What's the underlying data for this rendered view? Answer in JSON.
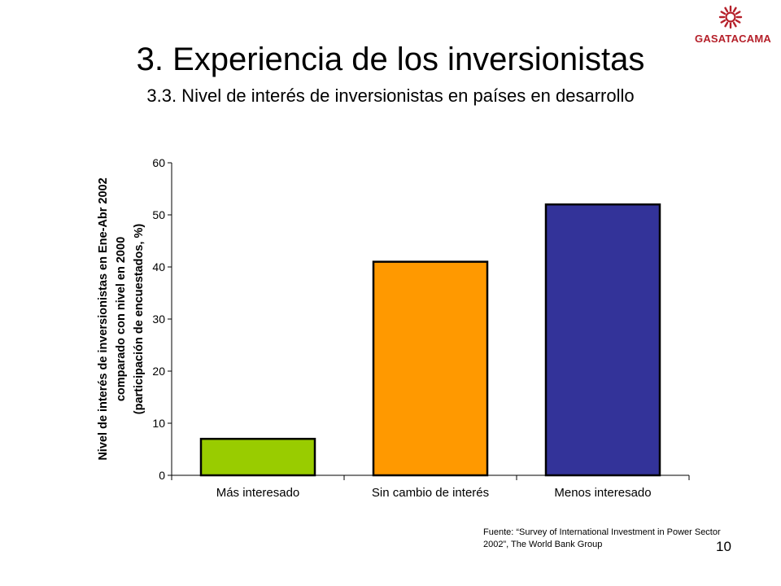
{
  "logo": {
    "text": "GASATACAMA",
    "color": "#b5202a"
  },
  "title": "3. Experiencia de los inversionistas",
  "subtitle": "3.3. Nivel de interés de inversionistas en países en desarrollo",
  "source": "Fuente: “Survey of International Investment in Power Sector 2002”, The World Bank Group",
  "page_number": "10",
  "chart_data": {
    "type": "bar",
    "categories": [
      "Más interesado",
      "Sin cambio de interés",
      "Menos interesado"
    ],
    "values": [
      7,
      41,
      52
    ],
    "colors": [
      "#99cc00",
      "#ff9900",
      "#333399"
    ],
    "ylabel_lines": [
      "Nivel de interés de inversionistas en Ene-Abr 2002",
      "comparado con nivel en 2000",
      "(participación de encuestados, %)"
    ],
    "ylim": [
      0,
      60
    ],
    "yticks": [
      0,
      10,
      20,
      30,
      40,
      50,
      60
    ],
    "grid": false,
    "legend": "none"
  }
}
